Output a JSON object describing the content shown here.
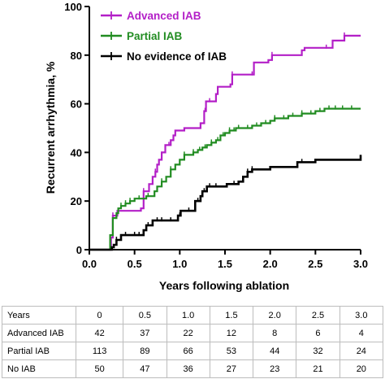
{
  "chart_data": {
    "type": "line",
    "subtype": "kaplan-meier step",
    "xlabel": "Years following ablation",
    "ylabel": "Recurrent arrhythmia, %",
    "xlim": [
      0,
      3.0
    ],
    "ylim": [
      0,
      100
    ],
    "x_ticks": [
      "0.0",
      "0.5",
      "1.0",
      "1.5",
      "2.0",
      "2.5",
      "3.0"
    ],
    "y_ticks": [
      "0",
      "20",
      "40",
      "60",
      "80",
      "100"
    ],
    "grid": false,
    "legend_position": "top-left",
    "series": [
      {
        "name": "Advanced IAB",
        "color": "#b31fc7",
        "points": [
          [
            0,
            0
          ],
          [
            0.24,
            5
          ],
          [
            0.26,
            14
          ],
          [
            0.31,
            16
          ],
          [
            0.57,
            17
          ],
          [
            0.6,
            24
          ],
          [
            0.66,
            27
          ],
          [
            0.7,
            30
          ],
          [
            0.73,
            32
          ],
          [
            0.75,
            35
          ],
          [
            0.77,
            37
          ],
          [
            0.8,
            40
          ],
          [
            0.84,
            43
          ],
          [
            0.9,
            45
          ],
          [
            0.93,
            47
          ],
          [
            0.95,
            49
          ],
          [
            1.05,
            50
          ],
          [
            1.23,
            52
          ],
          [
            1.27,
            57
          ],
          [
            1.29,
            61
          ],
          [
            1.4,
            64
          ],
          [
            1.42,
            67
          ],
          [
            1.56,
            68
          ],
          [
            1.58,
            72
          ],
          [
            1.8,
            72
          ],
          [
            1.82,
            77
          ],
          [
            1.98,
            78
          ],
          [
            2.02,
            80
          ],
          [
            2.35,
            82
          ],
          [
            2.38,
            83
          ],
          [
            2.6,
            83
          ],
          [
            2.69,
            86
          ],
          [
            2.82,
            88
          ],
          [
            3.0,
            88
          ]
        ],
        "censor_x": [
          0.26,
          0.6,
          0.73,
          0.88,
          1.28,
          1.33,
          1.58,
          1.8,
          2.02,
          2.62,
          2.82
        ]
      },
      {
        "name": "Partial IAB",
        "color": "#218c21",
        "points": [
          [
            0,
            0
          ],
          [
            0.23,
            6
          ],
          [
            0.26,
            13
          ],
          [
            0.3,
            15
          ],
          [
            0.32,
            17
          ],
          [
            0.35,
            18
          ],
          [
            0.4,
            19
          ],
          [
            0.45,
            20
          ],
          [
            0.5,
            21
          ],
          [
            0.6,
            21
          ],
          [
            0.63,
            22
          ],
          [
            0.72,
            24
          ],
          [
            0.75,
            26
          ],
          [
            0.8,
            28
          ],
          [
            0.85,
            30
          ],
          [
            0.9,
            33
          ],
          [
            0.95,
            35
          ],
          [
            1.0,
            37
          ],
          [
            1.05,
            39
          ],
          [
            1.15,
            40
          ],
          [
            1.2,
            41
          ],
          [
            1.25,
            42
          ],
          [
            1.3,
            43
          ],
          [
            1.35,
            44
          ],
          [
            1.4,
            45
          ],
          [
            1.45,
            47
          ],
          [
            1.5,
            48
          ],
          [
            1.55,
            49
          ],
          [
            1.62,
            50
          ],
          [
            1.8,
            51
          ],
          [
            1.9,
            52
          ],
          [
            2.0,
            53
          ],
          [
            2.05,
            54
          ],
          [
            2.2,
            55
          ],
          [
            2.35,
            56
          ],
          [
            2.5,
            57
          ],
          [
            2.6,
            58
          ],
          [
            2.75,
            58
          ],
          [
            3.0,
            58
          ]
        ],
        "censor_x": [
          0.35,
          0.4,
          0.45,
          0.55,
          0.65,
          0.8,
          0.9,
          1.05,
          1.15,
          1.22,
          1.28,
          1.35,
          1.42,
          1.48,
          1.55,
          1.6,
          1.65,
          1.75,
          1.85,
          1.95,
          2.05,
          2.15,
          2.25,
          2.35,
          2.45,
          2.55,
          2.65,
          2.72,
          2.8,
          2.9
        ]
      },
      {
        "name": "No evidence of IAB",
        "color": "#000000",
        "points": [
          [
            0,
            0
          ],
          [
            0.25,
            1
          ],
          [
            0.27,
            2
          ],
          [
            0.3,
            4
          ],
          [
            0.35,
            6
          ],
          [
            0.6,
            8
          ],
          [
            0.63,
            10
          ],
          [
            0.7,
            12
          ],
          [
            0.98,
            14
          ],
          [
            1.01,
            16
          ],
          [
            1.15,
            16
          ],
          [
            1.17,
            20
          ],
          [
            1.23,
            22
          ],
          [
            1.25,
            24
          ],
          [
            1.3,
            26
          ],
          [
            1.5,
            26
          ],
          [
            1.52,
            27
          ],
          [
            1.65,
            28
          ],
          [
            1.7,
            30
          ],
          [
            1.75,
            32
          ],
          [
            1.8,
            33
          ],
          [
            2.0,
            34
          ],
          [
            2.3,
            36
          ],
          [
            2.5,
            37
          ],
          [
            3.0,
            39
          ]
        ],
        "censor_x": [
          0.3,
          0.4,
          0.5,
          0.55,
          0.65,
          0.75,
          0.8,
          0.9,
          1.0,
          1.1,
          1.2,
          1.27,
          1.33,
          1.4,
          1.6,
          1.75,
          1.8,
          2.35
        ]
      }
    ]
  },
  "risk_table": {
    "header_label": "Years",
    "columns": [
      "0",
      "0.5",
      "1.0",
      "1.5",
      "2.0",
      "2.5",
      "3.0"
    ],
    "rows": [
      {
        "label": "Advanced IAB",
        "values": [
          "42",
          "37",
          "22",
          "12",
          "8",
          "6",
          "4"
        ]
      },
      {
        "label": "Partial IAB",
        "values": [
          "113",
          "89",
          "66",
          "53",
          "44",
          "32",
          "24"
        ]
      },
      {
        "label": "No IAB",
        "values": [
          "50",
          "47",
          "36",
          "27",
          "23",
          "21",
          "20"
        ]
      }
    ]
  }
}
